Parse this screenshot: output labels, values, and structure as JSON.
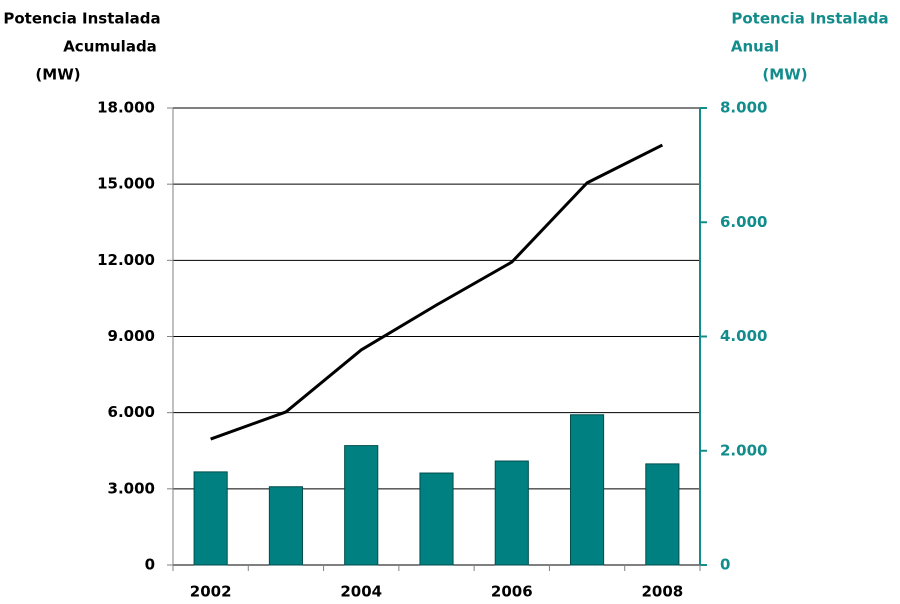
{
  "chart_data": {
    "type": "bar-line",
    "ylabel": [
      "Potencia Instalada",
      "Acumulada",
      "(MW)"
    ],
    "y2label": [
      "Potencia Instalada",
      "Anual",
      "(MW)"
    ],
    "categories": [
      "2002",
      null,
      "2004",
      null,
      "2006",
      null,
      "2008"
    ],
    "series": [
      {
        "type": "bar",
        "axis": "y2",
        "color": "#008080",
        "values": [
          1630,
          1370,
          2090,
          1610,
          1820,
          2630,
          1770
        ]
      },
      {
        "type": "line",
        "axis": "y",
        "color": "#000000",
        "values": [
          4960,
          6030,
          8470,
          10240,
          11930,
          15050,
          16540
        ]
      }
    ],
    "ylim": [
      0,
      18000
    ],
    "yticks": [
      0,
      {
        "value": 3000,
        "label": "3.000"
      },
      {
        "value": 6000,
        "label": "6.000"
      },
      {
        "value": 9000,
        "label": "9.000"
      },
      {
        "value": 12000,
        "label": "12.000"
      },
      {
        "value": 15000,
        "label": "15.000"
      },
      {
        "value": 18000,
        "label": "18.000"
      }
    ],
    "y2lim": [
      0,
      8000
    ],
    "y2ticks": [
      0,
      {
        "value": 2000,
        "label": "2.000"
      },
      {
        "value": 4000,
        "label": "4.000"
      },
      {
        "value": 6000,
        "label": "6.000"
      },
      {
        "value": 8000,
        "label": "8.000"
      }
    ],
    "grid": true
  }
}
